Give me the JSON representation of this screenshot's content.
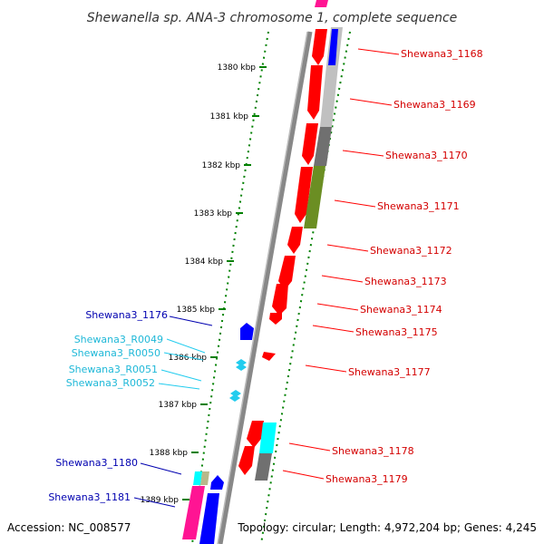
{
  "title": "Shewanella sp. ANA-3 chromosome 1, complete sequence",
  "footer": {
    "accession": "Accession: NC_008577",
    "topology": "Topology: circular; Length: 4,972,204 bp; Genes: 4,245"
  },
  "ticks": [
    "1380 kbp",
    "1381 kbp",
    "1382 kbp",
    "1383 kbp",
    "1384 kbp",
    "1385 kbp",
    "1386 kbp",
    "1387 kbp",
    "1388 kbp",
    "1389 kbp"
  ],
  "genes_right": [
    "Shewana3_1168",
    "Shewana3_1169",
    "Shewana3_1170",
    "Shewana3_1171",
    "Shewana3_1172",
    "Shewana3_1173",
    "Shewana3_1174",
    "Shewana3_1175",
    "Shewana3_1177",
    "Shewana3_1178",
    "Shewana3_1179"
  ],
  "genes_left": [
    "Shewana3_1176",
    "Shewana3_1180",
    "Shewana3_1181"
  ],
  "rnas_left": [
    "Shewana3_R0049",
    "Shewana3_R0050",
    "Shewana3_R0051",
    "Shewana3_R0052"
  ],
  "colors": {
    "cds": "#ff0000",
    "cog_blue": "#0000ff",
    "rna": "#22ccee",
    "gray": "#808080",
    "lightgray": "#c0c0c0",
    "olive": "#6b8e23",
    "magenta": "#ff1493",
    "cyan": "#00ffff",
    "tick_green": "#008000",
    "label_red": "#d40000",
    "label_blue": "#0000b0"
  }
}
